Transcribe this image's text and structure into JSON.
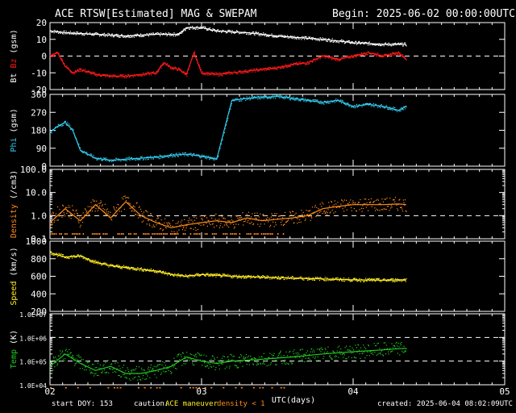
{
  "header": {
    "title": "ACE RTSW[Estimated] MAG & SWEPAM",
    "begin": "Begin: 2025-06-02 00:00:00UTC"
  },
  "footer": {
    "start_doy": "start DOY: 153",
    "caution_label": "caution:",
    "caution_maneuver": "ACE maneuver",
    "caution_density": "density < 1",
    "created": "created: 2025-06-04 08:02:09UTC"
  },
  "colors": {
    "background": "#000000",
    "frame": "#ffffff",
    "bt": "#ffffff",
    "bz": "#ff1a1a",
    "phi": "#33ccee",
    "density": "#ff8c1a",
    "speed": "#ffee22",
    "temp": "#22cc22"
  },
  "chart_data": {
    "type": "line",
    "x_axis": {
      "label": "UTC(days)",
      "range_days": [
        2,
        5
      ],
      "tick_labels": [
        "02",
        "03",
        "04",
        "05"
      ]
    },
    "data_end_day": 4.35,
    "panels": [
      {
        "id": "mag",
        "ylabel_parts": [
          "Bt",
          "Bz",
          "(gsm)"
        ],
        "ylim": [
          -20,
          20
        ],
        "scale": "linear",
        "tick_labels": [
          "20",
          "10",
          "0",
          "-10",
          "-20"
        ],
        "tick_values": [
          20,
          10,
          0,
          -10,
          -20
        ],
        "dashed_lines": [
          0
        ],
        "series": [
          {
            "name": "Bt",
            "color": "#ffffff",
            "x": [
              2.0,
              2.1,
              2.3,
              2.5,
              2.7,
              2.85,
              2.9,
              3.0,
              3.1,
              3.3,
              3.5,
              3.8,
              4.0,
              4.2,
              4.35
            ],
            "y": [
              15,
              14,
              13,
              12,
              13,
              13,
              17,
              17,
              15,
              14,
              12,
              10,
              8,
              7,
              7
            ]
          },
          {
            "name": "Bz",
            "color": "#ff1a1a",
            "x": [
              2.0,
              2.05,
              2.1,
              2.15,
              2.2,
              2.3,
              2.4,
              2.5,
              2.6,
              2.7,
              2.75,
              2.8,
              2.85,
              2.9,
              2.95,
              3.0,
              3.1,
              3.3,
              3.5,
              3.6,
              3.7,
              3.8,
              3.9,
              4.0,
              4.1,
              4.2,
              4.3,
              4.35
            ],
            "y": [
              0,
              2,
              -6,
              -10,
              -8,
              -11,
              -12,
              -12,
              -11,
              -10,
              -4,
              -7,
              -8,
              -11,
              2,
              -10,
              -11,
              -9,
              -7,
              -5,
              -4,
              0,
              -2,
              0,
              2,
              0,
              2,
              -2
            ]
          }
        ]
      },
      {
        "id": "phi",
        "ylabel_parts": [
          "Phi",
          "(gsm)"
        ],
        "ylim": [
          0,
          360
        ],
        "scale": "linear",
        "tick_labels": [
          "360",
          "270",
          "180",
          "90",
          "0"
        ],
        "tick_values": [
          360,
          270,
          180,
          90,
          0
        ],
        "dashed_lines": [],
        "series": [
          {
            "name": "Phi",
            "color": "#33ccee",
            "x": [
              2.0,
              2.05,
              2.1,
              2.15,
              2.2,
              2.3,
              2.4,
              2.5,
              2.6,
              2.7,
              2.8,
              2.9,
              3.0,
              3.1,
              3.2,
              3.3,
              3.4,
              3.5,
              3.6,
              3.7,
              3.8,
              3.9,
              4.0,
              4.1,
              4.2,
              4.3,
              4.35
            ],
            "y": [
              170,
              200,
              220,
              180,
              80,
              40,
              30,
              35,
              40,
              45,
              55,
              60,
              50,
              35,
              330,
              340,
              345,
              350,
              340,
              330,
              320,
              330,
              300,
              310,
              300,
              280,
              300
            ]
          }
        ]
      },
      {
        "id": "density",
        "ylabel_parts": [
          "Density",
          "(/cm3)"
        ],
        "ylim": [
          0.1,
          100
        ],
        "scale": "log",
        "tick_labels": [
          "100.0",
          "10.0",
          "1.0",
          "0.1"
        ],
        "tick_values": [
          100,
          10,
          1,
          0.1
        ],
        "dashed_lines": [
          1
        ],
        "series": [
          {
            "name": "Density",
            "color": "#ff8c1a",
            "x": [
              2.0,
              2.1,
              2.2,
              2.3,
              2.4,
              2.5,
              2.6,
              2.7,
              2.8,
              2.9,
              3.0,
              3.1,
              3.2,
              3.3,
              3.4,
              3.5,
              3.6,
              3.7,
              3.8,
              3.9,
              4.0,
              4.1,
              4.2,
              4.3,
              4.35
            ],
            "y": [
              0.5,
              2.0,
              0.6,
              3.0,
              0.8,
              4.0,
              1.0,
              0.5,
              0.3,
              0.4,
              0.5,
              0.6,
              0.5,
              0.8,
              0.6,
              0.7,
              0.8,
              1.0,
              2.0,
              2.5,
              3.0,
              3.0,
              3.0,
              3.2,
              3.0
            ]
          }
        ]
      },
      {
        "id": "speed",
        "ylabel_parts": [
          "Speed",
          "(km/s)"
        ],
        "ylim": [
          200,
          1000
        ],
        "scale": "linear",
        "tick_labels": [
          "1000",
          "800",
          "600",
          "400",
          "200"
        ],
        "tick_values": [
          1000,
          800,
          600,
          400,
          200
        ],
        "dashed_lines": [],
        "series": [
          {
            "name": "Speed",
            "color": "#ffee22",
            "x": [
              2.0,
              2.1,
              2.2,
              2.3,
              2.4,
              2.5,
              2.6,
              2.7,
              2.8,
              2.9,
              3.0,
              3.2,
              3.4,
              3.6,
              3.8,
              4.0,
              4.2,
              4.35
            ],
            "y": [
              870,
              820,
              830,
              760,
              720,
              700,
              680,
              660,
              620,
              600,
              620,
              600,
              590,
              580,
              570,
              560,
              555,
              560
            ]
          }
        ]
      },
      {
        "id": "temp",
        "ylabel_parts": [
          "Temp",
          "(K)"
        ],
        "ylim": [
          10000,
          10000000
        ],
        "scale": "log",
        "tick_labels": [
          "1.0E+07",
          "1.0E+06",
          "1.0E+05",
          "1.0E+04"
        ],
        "tick_values": [
          10000000,
          1000000,
          100000,
          10000
        ],
        "dashed_lines": [
          1000000,
          100000
        ],
        "series": [
          {
            "name": "Temp",
            "color": "#22cc22",
            "x": [
              2.0,
              2.1,
              2.2,
              2.3,
              2.4,
              2.5,
              2.6,
              2.7,
              2.8,
              2.9,
              3.0,
              3.1,
              3.2,
              3.4,
              3.6,
              3.8,
              4.0,
              4.2,
              4.35
            ],
            "y": [
              60000,
              200000,
              80000,
              40000,
              60000,
              30000,
              30000,
              40000,
              60000,
              150000,
              100000,
              80000,
              100000,
              120000,
              150000,
              200000,
              250000,
              300000,
              350000
            ]
          }
        ]
      }
    ]
  }
}
